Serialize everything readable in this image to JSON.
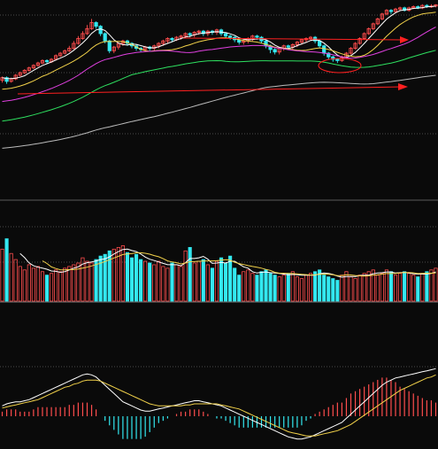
{
  "theme": {
    "background": "#0a0a0a",
    "up_color": "#ff4d4d",
    "down_color": "#33e8f0",
    "grid_color": "#8a8a8a",
    "separator_color": "#777777",
    "annotation_color": "#ff2020",
    "ma_colors": [
      "#ffffff",
      "#f2d24a",
      "#e040e0",
      "#2ee060",
      "#bbbbbb"
    ]
  },
  "chart_data": [
    {
      "type": "candlestick",
      "panel": "price",
      "x": [
        1,
        2,
        3,
        4,
        5,
        6,
        7,
        8,
        9,
        10,
        11,
        12,
        13,
        14,
        15,
        16,
        17,
        18,
        19,
        20,
        21,
        22,
        23,
        24,
        25,
        26,
        27,
        28,
        29,
        30,
        31,
        32,
        33,
        34,
        35,
        36,
        37,
        38,
        39,
        40,
        41,
        42,
        43,
        44,
        45,
        46,
        47,
        48,
        49,
        50,
        51,
        52,
        53,
        54,
        55,
        56,
        57,
        58,
        59,
        60,
        61,
        62,
        63,
        64,
        65,
        66,
        67,
        68,
        69,
        70,
        71,
        72,
        73,
        74,
        75,
        76,
        77,
        78,
        79,
        80,
        81,
        82,
        83,
        84,
        85,
        86,
        87,
        88,
        89,
        90,
        91,
        92,
        93,
        94,
        95,
        96,
        97,
        98
      ],
      "open": [
        38,
        40,
        37,
        39,
        42,
        44,
        46,
        48,
        50,
        52,
        54,
        53,
        55,
        58,
        60,
        62,
        64,
        68,
        72,
        76,
        80,
        85,
        82,
        76,
        70,
        62,
        65,
        68,
        70,
        68,
        66,
        64,
        63,
        65,
        64,
        66,
        68,
        70,
        72,
        71,
        73,
        74,
        76,
        75,
        77,
        78,
        76,
        78,
        77,
        79,
        76,
        74,
        73,
        71,
        69,
        70,
        72,
        74,
        73,
        70,
        66,
        63,
        61,
        64,
        66,
        65,
        67,
        69,
        71,
        72,
        73,
        70,
        66,
        60,
        57,
        55,
        54,
        57,
        60,
        64,
        68,
        72,
        76,
        80,
        84,
        88,
        92,
        95,
        94,
        96,
        97,
        95,
        97,
        98,
        97,
        99,
        98,
        98.5
      ],
      "close": [
        40,
        37,
        39,
        42,
        44,
        46,
        48,
        50,
        52,
        54,
        53,
        55,
        58,
        60,
        62,
        64,
        68,
        72,
        76,
        80,
        85,
        82,
        76,
        70,
        62,
        65,
        68,
        70,
        68,
        66,
        64,
        63,
        65,
        64,
        66,
        68,
        70,
        72,
        71,
        73,
        74,
        76,
        75,
        77,
        78,
        76,
        78,
        77,
        79,
        76,
        74,
        73,
        71,
        69,
        70,
        72,
        74,
        73,
        70,
        66,
        63,
        61,
        64,
        66,
        65,
        67,
        69,
        71,
        72,
        73,
        70,
        66,
        60,
        57,
        55,
        54,
        57,
        60,
        64,
        68,
        72,
        76,
        80,
        84,
        88,
        92,
        95,
        94,
        96,
        97,
        95,
        97,
        98,
        97,
        99,
        98,
        98.5,
        99.5
      ],
      "high": [
        41,
        41,
        40,
        43,
        45,
        47,
        49,
        51,
        53,
        55,
        55,
        56,
        59,
        61,
        63,
        66,
        70,
        74,
        78,
        83,
        88,
        86,
        83,
        77,
        71,
        66,
        69,
        71,
        71,
        69,
        67,
        65,
        66,
        66,
        67,
        69,
        71,
        73,
        73,
        74,
        75,
        77,
        77,
        78,
        79,
        79,
        79,
        79,
        80,
        80,
        77,
        75,
        74,
        72,
        71,
        73,
        75,
        75,
        74,
        71,
        67,
        64,
        65,
        67,
        67,
        68,
        70,
        72,
        73,
        74,
        74,
        71,
        67,
        61,
        58,
        56,
        58,
        61,
        65,
        69,
        73,
        77,
        81,
        85,
        89,
        93,
        96,
        96,
        97,
        98,
        98,
        98,
        99,
        99,
        100,
        100,
        100,
        100
      ],
      "low": [
        36,
        35,
        36,
        38,
        41,
        43,
        45,
        47,
        49,
        51,
        51,
        52,
        54,
        57,
        59,
        61,
        63,
        67,
        71,
        75,
        79,
        80,
        74,
        68,
        60,
        60,
        63,
        66,
        66,
        64,
        62,
        61,
        61,
        62,
        62,
        64,
        66,
        68,
        69,
        70,
        71,
        72,
        73,
        73,
        75,
        74,
        74,
        75,
        75,
        74,
        72,
        71,
        69,
        67,
        67,
        68,
        70,
        71,
        68,
        64,
        60,
        59,
        59,
        62,
        63,
        63,
        65,
        67,
        69,
        70,
        68,
        64,
        58,
        55,
        53,
        52,
        53,
        56,
        59,
        63,
        67,
        71,
        75,
        79,
        83,
        87,
        91,
        92,
        93,
        95,
        94,
        94,
        96,
        96,
        96,
        97,
        97,
        97.5
      ],
      "ma_periods": [
        5,
        10,
        20,
        30,
        60
      ],
      "ylim": [
        -60,
        102
      ]
    },
    {
      "type": "bar",
      "panel": "volume",
      "values": [
        60,
        72,
        55,
        48,
        40,
        36,
        42,
        38,
        40,
        34,
        30,
        32,
        36,
        34,
        38,
        40,
        42,
        44,
        50,
        46,
        44,
        48,
        52,
        54,
        58,
        60,
        62,
        64,
        56,
        50,
        54,
        48,
        46,
        44,
        42,
        46,
        40,
        38,
        44,
        42,
        40,
        58,
        62,
        44,
        46,
        48,
        42,
        38,
        46,
        50,
        44,
        52,
        38,
        30,
        34,
        36,
        32,
        30,
        34,
        36,
        32,
        30,
        28,
        30,
        32,
        34,
        28,
        26,
        30,
        32,
        34,
        36,
        30,
        28,
        26,
        24,
        30,
        34,
        28,
        26,
        30,
        32,
        34,
        36,
        30,
        32,
        36,
        34,
        30,
        32,
        34,
        32,
        30,
        28,
        32,
        34,
        36,
        38
      ],
      "direction": [
        "up",
        "down",
        "up",
        "up",
        "up",
        "up",
        "up",
        "up",
        "up",
        "up",
        "down",
        "up",
        "up",
        "up",
        "up",
        "up",
        "up",
        "up",
        "up",
        "up",
        "up",
        "down",
        "down",
        "down",
        "down",
        "up",
        "up",
        "up",
        "down",
        "down",
        "down",
        "down",
        "up",
        "down",
        "up",
        "up",
        "up",
        "up",
        "down",
        "up",
        "up",
        "up",
        "down",
        "up",
        "up",
        "down",
        "up",
        "down",
        "up",
        "down",
        "down",
        "down",
        "down",
        "down",
        "up",
        "up",
        "up",
        "down",
        "down",
        "down",
        "down",
        "down",
        "up",
        "up",
        "down",
        "up",
        "up",
        "up",
        "up",
        "up",
        "down",
        "down",
        "down",
        "down",
        "down",
        "down",
        "up",
        "up",
        "up",
        "up",
        "up",
        "up",
        "up",
        "up",
        "up",
        "up",
        "up",
        "down",
        "up",
        "up",
        "down",
        "up",
        "up",
        "down",
        "up",
        "down",
        "up",
        "up"
      ],
      "ma_periods": [
        5,
        10
      ],
      "ylim": [
        0,
        90
      ]
    },
    {
      "type": "macd",
      "panel": "indicator",
      "dif": [
        10,
        12,
        13,
        14,
        14,
        15,
        16,
        18,
        20,
        22,
        24,
        26,
        28,
        30,
        32,
        34,
        36,
        38,
        40,
        41,
        40,
        38,
        34,
        30,
        26,
        22,
        18,
        14,
        12,
        10,
        8,
        6,
        5,
        5,
        6,
        7,
        8,
        9,
        10,
        11,
        12,
        13,
        14,
        15,
        15,
        14,
        13,
        12,
        11,
        10,
        8,
        6,
        4,
        2,
        0,
        -2,
        -4,
        -6,
        -8,
        -10,
        -12,
        -14,
        -16,
        -18,
        -20,
        -21,
        -22,
        -22,
        -21,
        -20,
        -18,
        -16,
        -14,
        -12,
        -10,
        -8,
        -6,
        -2,
        2,
        6,
        10,
        14,
        18,
        22,
        26,
        30,
        33,
        35,
        37,
        38,
        39,
        40,
        41,
        42,
        43,
        44,
        45,
        46
      ],
      "dea": [
        8,
        9,
        10,
        11,
        12,
        13,
        14,
        15,
        16,
        18,
        20,
        22,
        24,
        26,
        28,
        29,
        31,
        32,
        34,
        35,
        35,
        35,
        34,
        32,
        30,
        28,
        26,
        24,
        22,
        20,
        18,
        16,
        14,
        12,
        11,
        10,
        10,
        10,
        10,
        10,
        10,
        11,
        11,
        12,
        12,
        12,
        12,
        12,
        12,
        11,
        10,
        9,
        8,
        7,
        5,
        3,
        1,
        -1,
        -3,
        -5,
        -7,
        -9,
        -11,
        -13,
        -15,
        -16,
        -17,
        -18,
        -19,
        -19,
        -19,
        -18,
        -17,
        -16,
        -15,
        -14,
        -12,
        -10,
        -8,
        -5,
        -2,
        1,
        4,
        7,
        10,
        13,
        16,
        19,
        22,
        25,
        27,
        29,
        31,
        33,
        35,
        37,
        38,
        40
      ],
      "ylim": [
        -30,
        60
      ]
    }
  ]
}
